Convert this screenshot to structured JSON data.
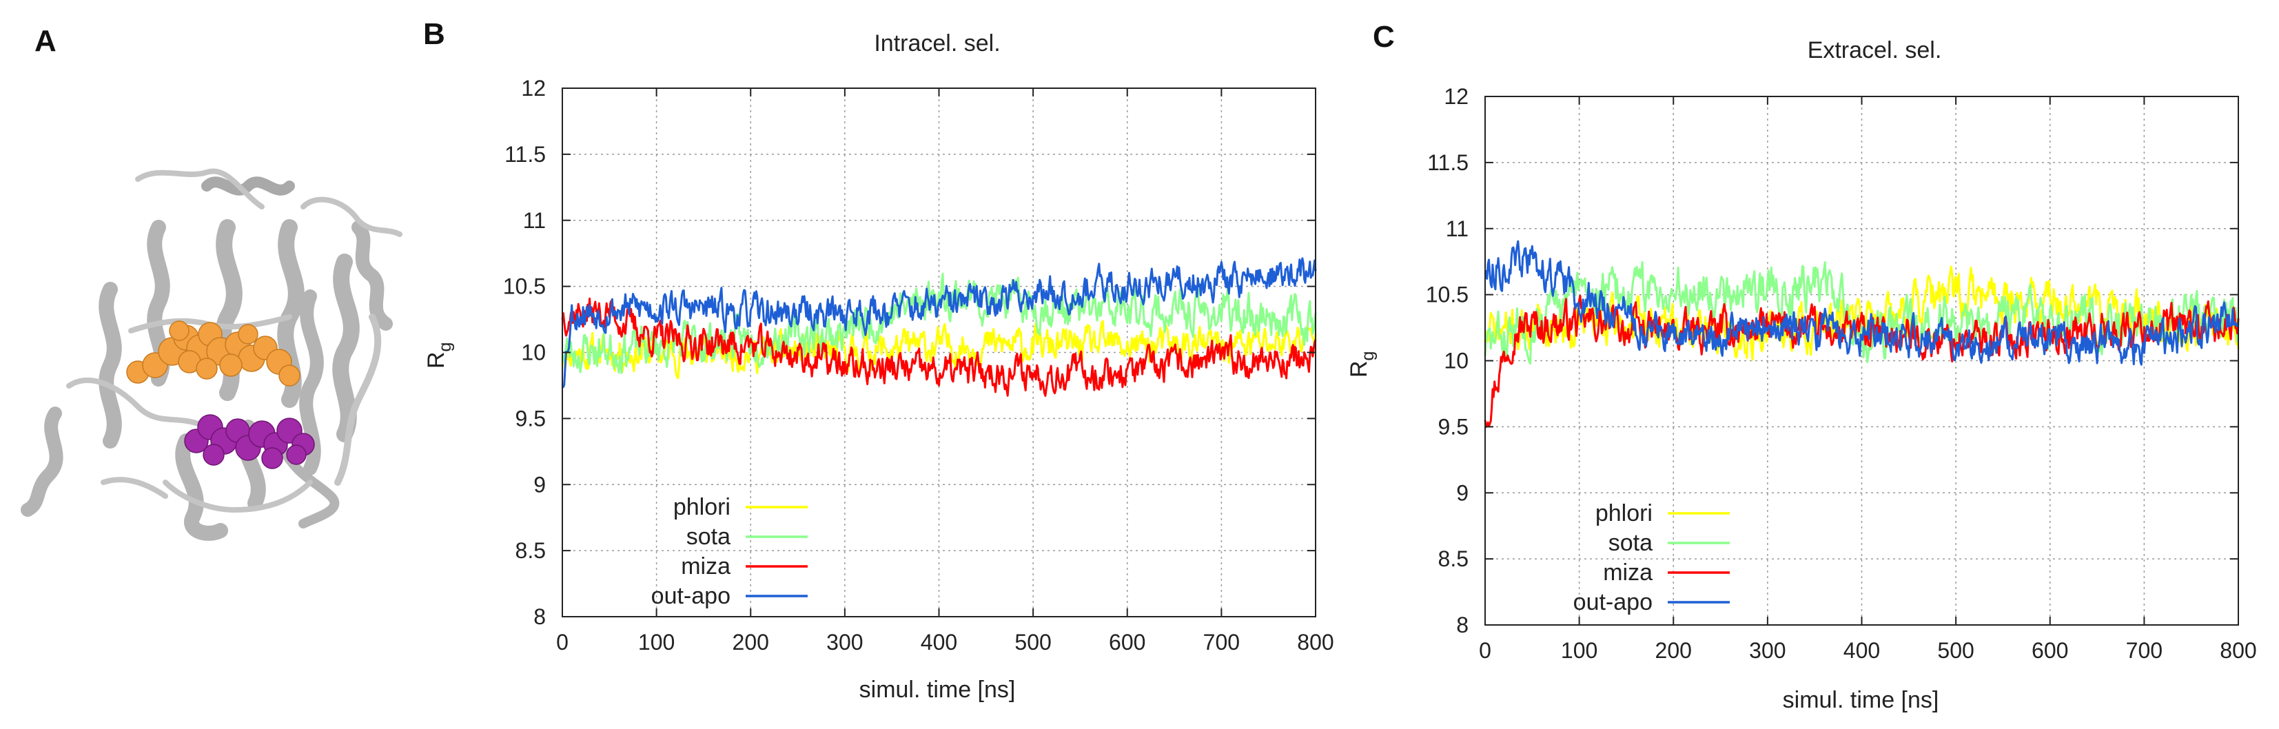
{
  "panels": {
    "a": {
      "letter": "A"
    },
    "b": {
      "letter": "B"
    },
    "c": {
      "letter": "C"
    }
  },
  "protein_image": {
    "description_icon": "protein-ribbon-icon",
    "colors": {
      "backbone": "#b4b4b4",
      "ligand_upper": "#f2a040",
      "ligand_lower": "#a12aa8"
    }
  },
  "chart_data": [
    {
      "type": "line",
      "title": "Intracel. sel.",
      "xlabel": "simul. time [ns]",
      "ylabel_main": "R",
      "ylabel_sub": "g",
      "xlim": [
        0,
        800
      ],
      "ylim": [
        8,
        12
      ],
      "xticks": [
        0,
        100,
        200,
        300,
        400,
        500,
        600,
        700,
        800
      ],
      "yticks": [
        8,
        8.5,
        9,
        9.5,
        10,
        10.5,
        11,
        11.5,
        12
      ],
      "ytick_labels": [
        "8",
        "8.5",
        "9",
        "9.5",
        "10",
        "10.5",
        "11",
        "11.5",
        "12"
      ],
      "grid": true,
      "legend_position": "bottom-left",
      "series": [
        {
          "name": "phlori",
          "color": "#ffff00",
          "noise": 0.1,
          "seed": 11,
          "x": [
            0,
            100,
            200,
            300,
            400,
            500,
            600,
            700,
            800
          ],
          "values": [
            10.0,
            10.0,
            10.0,
            10.0,
            10.05,
            10.05,
            10.05,
            10.05,
            10.1
          ]
        },
        {
          "name": "sota",
          "color": "#8cff8c",
          "noise": 0.12,
          "seed": 23,
          "x": [
            0,
            100,
            200,
            300,
            400,
            500,
            600,
            700,
            800
          ],
          "values": [
            10.0,
            10.05,
            10.1,
            10.15,
            10.45,
            10.35,
            10.3,
            10.3,
            10.25
          ]
        },
        {
          "name": "miza",
          "color": "#ff0000",
          "noise": 0.1,
          "seed": 37,
          "x": [
            0,
            50,
            100,
            200,
            300,
            400,
            500,
            600,
            700,
            800
          ],
          "values": [
            10.3,
            10.3,
            10.1,
            10.05,
            9.9,
            9.85,
            9.85,
            9.85,
            9.95,
            9.95
          ]
        },
        {
          "name": "out-apo",
          "color": "#1e5fd6",
          "noise": 0.1,
          "seed": 53,
          "x": [
            0,
            10,
            100,
            200,
            300,
            400,
            500,
            600,
            700,
            800
          ],
          "values": [
            9.8,
            10.3,
            10.35,
            10.3,
            10.3,
            10.35,
            10.45,
            10.5,
            10.55,
            10.6
          ]
        }
      ]
    },
    {
      "type": "line",
      "title": "Extracel. sel.",
      "xlabel": "simul. time [ns]",
      "ylabel_main": "R",
      "ylabel_sub": "g",
      "xlim": [
        0,
        800
      ],
      "ylim": [
        8,
        12
      ],
      "xticks": [
        0,
        100,
        200,
        300,
        400,
        500,
        600,
        700,
        800
      ],
      "yticks": [
        8,
        8.5,
        9,
        9.5,
        10,
        10.5,
        11,
        11.5,
        12
      ],
      "ytick_labels": [
        "8",
        "8.5",
        "9",
        "9.5",
        "10",
        "10.5",
        "11",
        "11.5",
        "12"
      ],
      "grid": true,
      "legend_position": "bottom-left",
      "series": [
        {
          "name": "phlori",
          "color": "#ffff00",
          "noise": 0.13,
          "seed": 71,
          "x": [
            0,
            100,
            200,
            300,
            400,
            500,
            600,
            700,
            800
          ],
          "values": [
            10.2,
            10.3,
            10.25,
            10.2,
            10.3,
            10.5,
            10.45,
            10.3,
            10.25
          ]
        },
        {
          "name": "sota",
          "color": "#8cff8c",
          "noise": 0.14,
          "seed": 83,
          "x": [
            0,
            100,
            200,
            300,
            360,
            400,
            500,
            600,
            700,
            800
          ],
          "values": [
            10.1,
            10.5,
            10.55,
            10.55,
            10.6,
            10.2,
            10.3,
            10.3,
            10.3,
            10.3
          ]
        },
        {
          "name": "miza",
          "color": "#ff0000",
          "noise": 0.11,
          "seed": 97,
          "x": [
            0,
            30,
            100,
            200,
            300,
            400,
            500,
            600,
            700,
            800
          ],
          "values": [
            9.6,
            10.25,
            10.3,
            10.2,
            10.25,
            10.2,
            10.15,
            10.2,
            10.25,
            10.25
          ]
        },
        {
          "name": "out-apo",
          "color": "#1e5fd6",
          "noise": 0.11,
          "seed": 113,
          "x": [
            0,
            50,
            100,
            200,
            300,
            400,
            500,
            600,
            700,
            800
          ],
          "values": [
            10.7,
            10.75,
            10.5,
            10.15,
            10.25,
            10.2,
            10.15,
            10.15,
            10.1,
            10.35
          ]
        }
      ]
    }
  ]
}
